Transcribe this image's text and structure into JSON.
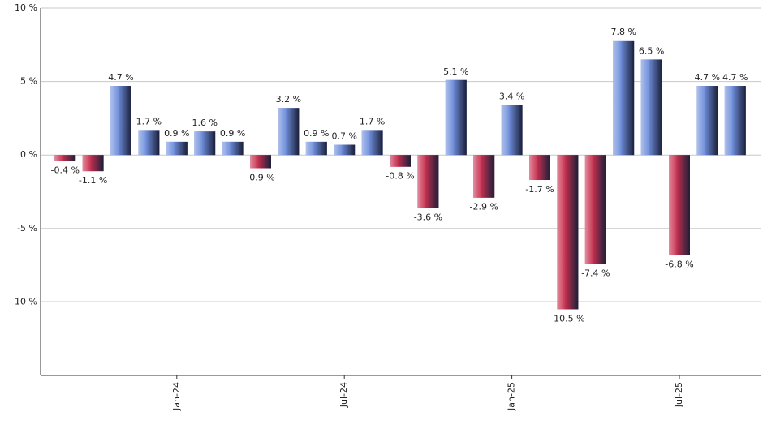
{
  "chart_data": {
    "type": "bar",
    "categories": [
      null,
      null,
      null,
      null,
      "Jan-24",
      null,
      null,
      null,
      null,
      null,
      "Jul-24",
      null,
      null,
      null,
      null,
      null,
      "Jan-25",
      null,
      null,
      null,
      null,
      null,
      "Jul-25",
      null,
      null
    ],
    "values": [
      -0.4,
      -1.1,
      4.7,
      1.7,
      0.9,
      1.6,
      0.9,
      -0.9,
      3.2,
      0.9,
      0.7,
      1.7,
      -0.8,
      -3.6,
      5.1,
      -2.9,
      3.4,
      -1.7,
      -10.5,
      -7.4,
      7.8,
      6.5,
      -6.8,
      4.7,
      4.7
    ],
    "value_labels": [
      "-0.4 %",
      "-1.1 %",
      "4.7 %",
      "1.7 %",
      "0.9 %",
      "1.6 %",
      "0.9 %",
      "-0.9 %",
      "3.2 %",
      "0.9 %",
      "0.7 %",
      "1.7 %",
      "-0.8 %",
      "-3.6 %",
      "5.1 %",
      "-2.9 %",
      "3.4 %",
      "-1.7 %",
      "-10.5 %",
      "-7.4 %",
      "7.8 %",
      "6.5 %",
      "-6.8 %",
      "4.7 %",
      "4.7 %"
    ],
    "positive_color": "#6f8fdc",
    "negative_color": "#c8304f",
    "ylim": [
      -15,
      10
    ],
    "yticks": [
      {
        "value": -10,
        "label": "-10 %"
      },
      {
        "value": -5,
        "label": "-5 %"
      },
      {
        "value": 0,
        "label": "0 %"
      },
      {
        "value": 5,
        "label": "5 %"
      },
      {
        "value": 10,
        "label": "10 %"
      }
    ],
    "grid": true,
    "reference_line": {
      "value": -10,
      "color": "#2e7d32"
    }
  }
}
